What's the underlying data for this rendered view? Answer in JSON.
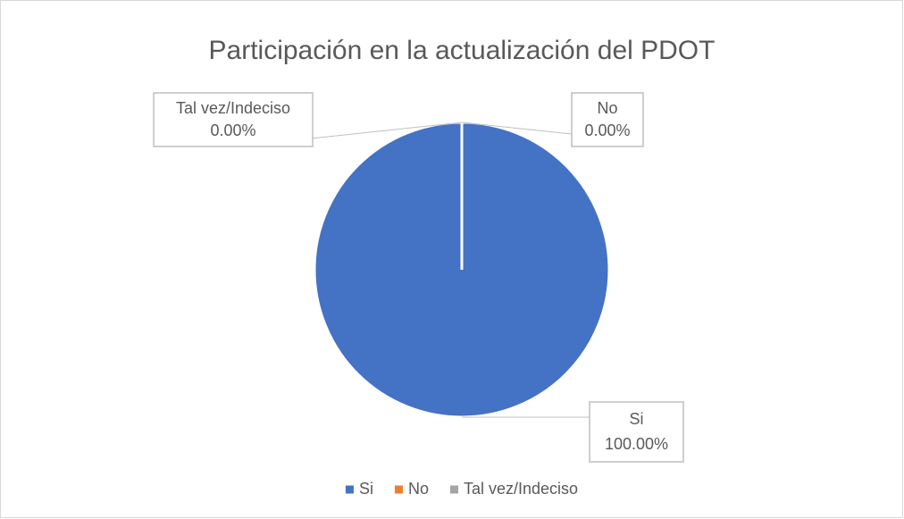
{
  "chart_data": {
    "type": "pie",
    "title": "Participación en la actualización del PDOT",
    "categories": [
      "Si",
      "No",
      "Tal vez/Indeciso"
    ],
    "values": [
      100,
      0,
      0
    ],
    "value_labels": [
      "100.00%",
      "0.00%",
      "0.00%"
    ],
    "colors": [
      "#4472c4",
      "#ed7d31",
      "#a5a5a5"
    ],
    "legend": "bottom"
  }
}
